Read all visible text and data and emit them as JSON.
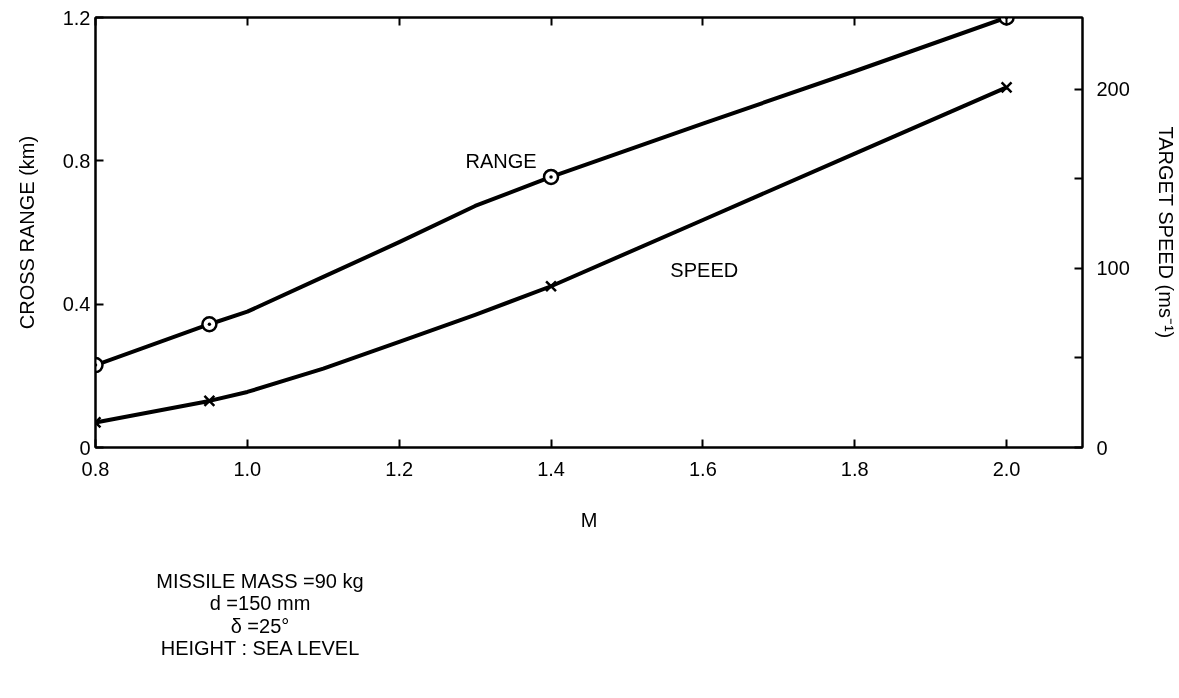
{
  "chart_data": {
    "type": "line",
    "xlabel": "M",
    "ylabel": "CROSS RANGE (km)",
    "y2label": "TARGET SPEED (ms⁻¹)",
    "xlim": [
      0.8,
      2.1
    ],
    "xticks": [
      0.8,
      {
        "value": 1.0,
        "label": "1.0"
      },
      1.2,
      1.4,
      1.6,
      1.8,
      {
        "value": 2.0,
        "label": "2.0"
      }
    ],
    "ylim": [
      0,
      1.2
    ],
    "yticks": [
      0,
      0.4,
      0.8,
      1.2
    ],
    "y2lim": [
      0,
      240
    ],
    "y2ticks": [
      0,
      {
        "value": 50,
        "label": null
      },
      100,
      {
        "value": 150,
        "label": null
      },
      200
    ],
    "x": [
      0.8,
      0.95,
      1.0,
      1.1,
      1.2,
      1.3,
      1.4,
      1.6,
      1.8,
      2.0
    ],
    "series": [
      {
        "name": "RANGE",
        "color": "#000000",
        "values": [
          0.23,
          0.344,
          0.379,
          0.476,
          0.573,
          0.674,
          0.755,
          0.904,
          1.05,
          1.2
        ]
      },
      {
        "name": "SPEED",
        "color": "#000000",
        "axis": "y2",
        "values": [
          14,
          26,
          31,
          44,
          59,
          74,
          90,
          127,
          164,
          201
        ]
      },
      {
        "type": "scatter",
        "color": "#000000",
        "marker": "circle",
        "x": [
          0.8,
          0.95,
          1.4,
          2.0
        ],
        "values": [
          0.23,
          0.344,
          0.755,
          1.2
        ]
      },
      {
        "type": "scatter",
        "color": "#000000",
        "marker": "cross",
        "axis": "y2",
        "x": [
          0.8,
          0.95,
          1.4,
          2.0
        ],
        "values": [
          14,
          26,
          90,
          201
        ]
      }
    ],
    "grid": false,
    "line_style": "solid",
    "annotations": [
      "MISSILE MASS =90 kg",
      "d =150 mm",
      "δ =25°",
      "HEIGHT : SEA LEVEL"
    ]
  }
}
